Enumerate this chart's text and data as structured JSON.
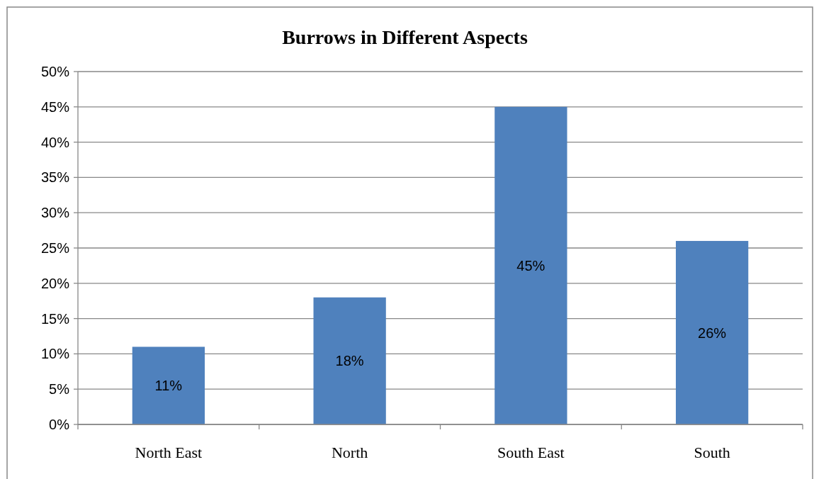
{
  "chart_data": {
    "type": "bar",
    "title": "Burrows in Different Aspects",
    "categories": [
      "North East",
      "North",
      "South East",
      "South"
    ],
    "values": [
      11,
      18,
      45,
      26
    ],
    "value_labels": [
      "11%",
      "18%",
      "45%",
      "26%"
    ],
    "color": "#4f81bd",
    "ylim": [
      0,
      50
    ],
    "yticks": [
      {
        "value": 0,
        "label": "0%"
      },
      {
        "value": 5,
        "label": "5%"
      },
      {
        "value": 10,
        "label": "10%"
      },
      {
        "value": 15,
        "label": "15%"
      },
      {
        "value": 20,
        "label": "20%"
      },
      {
        "value": 25,
        "label": "25%"
      },
      {
        "value": 30,
        "label": "30%"
      },
      {
        "value": 35,
        "label": "35%"
      },
      {
        "value": 40,
        "label": "40%"
      },
      {
        "value": 45,
        "label": "45%"
      },
      {
        "value": 50,
        "label": "50%"
      }
    ],
    "grid": "y"
  }
}
